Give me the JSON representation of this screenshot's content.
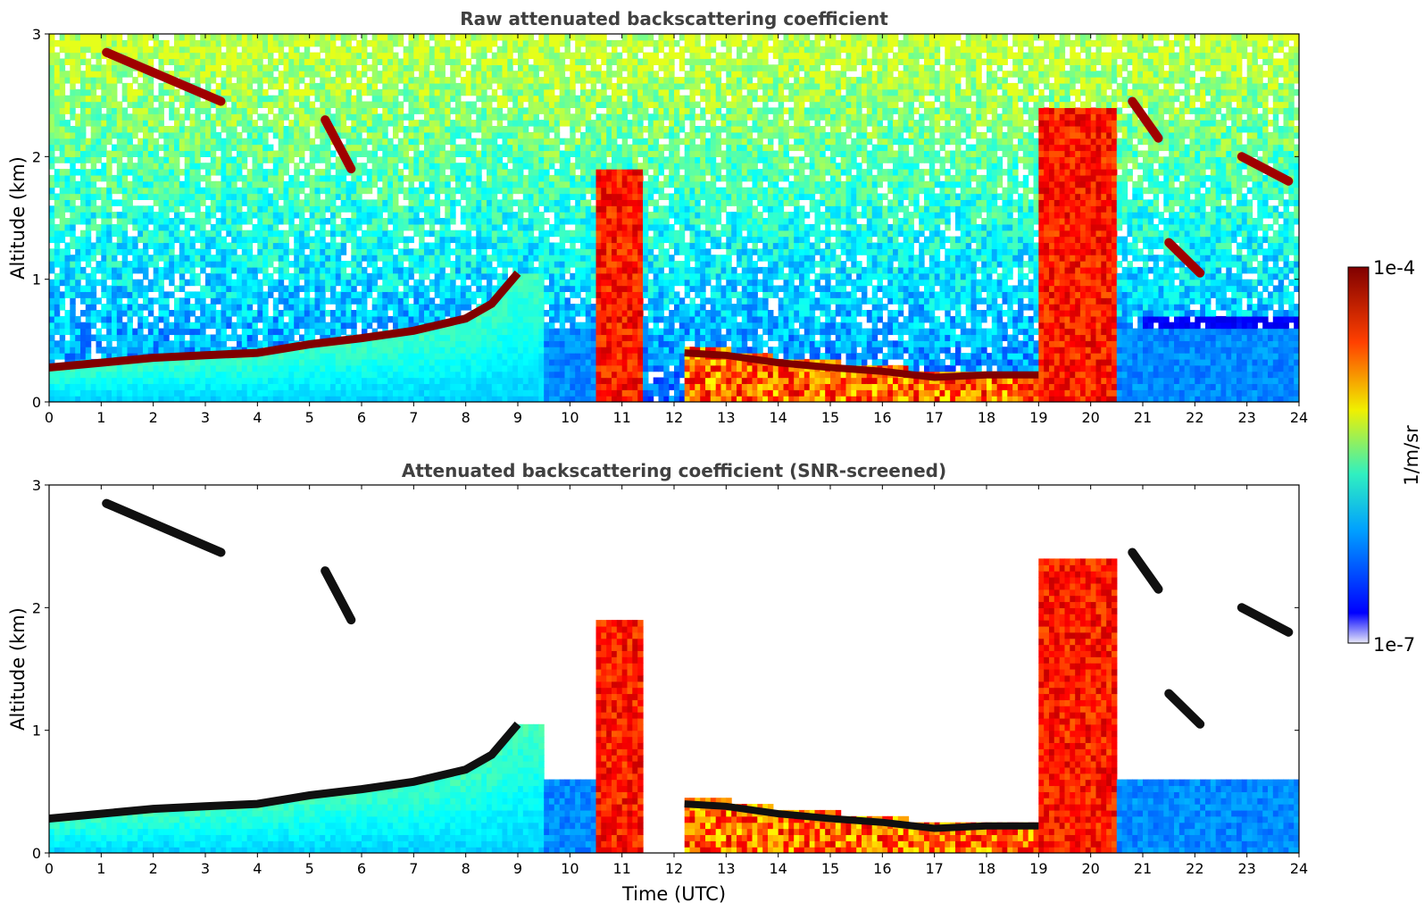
{
  "chart_data": [
    {
      "type": "heatmap",
      "title": "Raw attenuated backscattering coefficient",
      "xlabel": "",
      "ylabel": "Altitude (km)",
      "xlim": [
        0,
        24
      ],
      "ylim": [
        0,
        3
      ],
      "xticks": [
        "0",
        "1",
        "2",
        "3",
        "4",
        "5",
        "6",
        "7",
        "8",
        "9",
        "10",
        "11",
        "12",
        "13",
        "14",
        "15",
        "16",
        "17",
        "18",
        "19",
        "20",
        "21",
        "22",
        "23",
        "24"
      ],
      "yticks": [
        "0",
        "1",
        "2",
        "3"
      ],
      "screened": false,
      "features": {
        "boundary_layer_top_km": [
          [
            0,
            0.28
          ],
          [
            1,
            0.32
          ],
          [
            2,
            0.36
          ],
          [
            3,
            0.38
          ],
          [
            4,
            0.4
          ],
          [
            5,
            0.47
          ],
          [
            6,
            0.52
          ],
          [
            7,
            0.58
          ],
          [
            8,
            0.68
          ],
          [
            8.5,
            0.8
          ],
          [
            9,
            1.05
          ]
        ],
        "low_cloud_base_km": [
          [
            12.2,
            0.4
          ],
          [
            13,
            0.38
          ],
          [
            14,
            0.32
          ],
          [
            15,
            0.28
          ],
          [
            16,
            0.25
          ],
          [
            17,
            0.2
          ],
          [
            18,
            0.22
          ],
          [
            19,
            0.22
          ]
        ],
        "elevated_layers_km": [
          {
            "t": [
              1.1,
              3.3
            ],
            "z": [
              2.85,
              2.45
            ]
          },
          {
            "t": [
              5.3,
              5.8
            ],
            "z": [
              2.3,
              1.9
            ]
          },
          {
            "t": [
              20.8,
              21.3
            ],
            "z": [
              2.45,
              2.15
            ]
          },
          {
            "t": [
              21.5,
              22.1
            ],
            "z": [
              1.3,
              1.05
            ]
          },
          {
            "t": [
              22.9,
              23.8
            ],
            "z": [
              2.0,
              1.8
            ]
          }
        ],
        "convective_columns": [
          {
            "t": [
              10.55,
              11.45
            ],
            "top_km": 1.9
          },
          {
            "t": [
              19.0,
              20.5
            ],
            "top_km": 2.4
          }
        ]
      }
    },
    {
      "type": "heatmap",
      "title": "Attenuated backscattering coefficient (SNR-screened)",
      "xlabel": "Time (UTC)",
      "ylabel": "Altitude (km)",
      "xlim": [
        0,
        24
      ],
      "ylim": [
        0,
        3
      ],
      "xticks": [
        "0",
        "1",
        "2",
        "3",
        "4",
        "5",
        "6",
        "7",
        "8",
        "9",
        "10",
        "11",
        "12",
        "13",
        "14",
        "15",
        "16",
        "17",
        "18",
        "19",
        "20",
        "21",
        "22",
        "23",
        "24"
      ],
      "yticks": [
        "0",
        "1",
        "2",
        "3"
      ],
      "screened": true
    }
  ],
  "colorbar": {
    "label": "1/m/sr",
    "max_label": "1e-4",
    "min_label": "1e-7",
    "colormap": "jet",
    "colors": [
      "#e8e8f8",
      "#0000ff",
      "#00c0ff",
      "#40f0b0",
      "#f0f000",
      "#ff6000",
      "#800000"
    ]
  }
}
